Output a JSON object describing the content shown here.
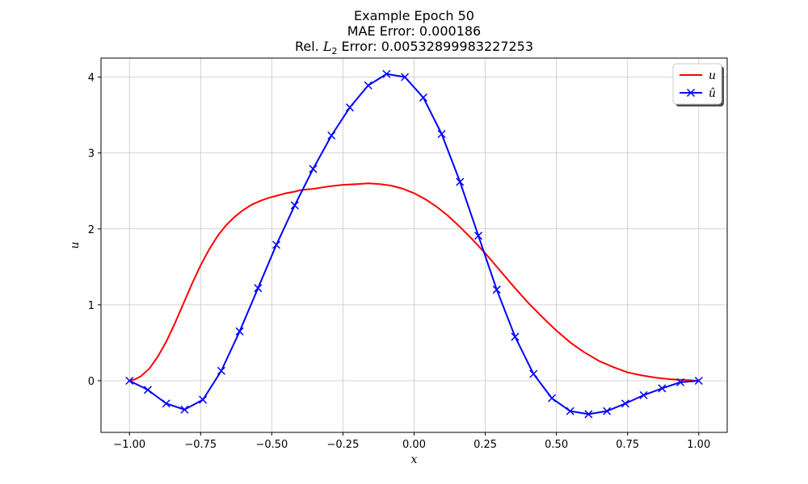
{
  "chart_data": {
    "type": "line",
    "title": {
      "line1": "Example Epoch 50",
      "line2": "MAE Error: 0.000186",
      "line3_prefix": "Rel. ",
      "line3_math": "L",
      "line3_sub": "2",
      "line3_suffix": " Error: 0.00532899983227253"
    },
    "xlabel": "x",
    "ylabel": "u",
    "xlim": [
      -1.1,
      1.1
    ],
    "ylim": [
      -0.68,
      4.25
    ],
    "xticks": [
      -1.0,
      -0.75,
      -0.5,
      -0.25,
      0.0,
      0.25,
      0.5,
      0.75,
      1.0
    ],
    "xtick_labels": [
      "−1.00",
      "−0.75",
      "−0.50",
      "−0.25",
      "0.00",
      "0.25",
      "0.50",
      "0.75",
      "1.00"
    ],
    "yticks": [
      0,
      1,
      2,
      3,
      4
    ],
    "ytick_labels": [
      "0",
      "1",
      "2",
      "3",
      "4"
    ],
    "grid": true,
    "legend_position": "top-right",
    "series": [
      {
        "name": "u",
        "legend_label": "u",
        "color": "#ff0000",
        "marker": "none",
        "x": [
          -1.0,
          -0.98,
          -0.96,
          -0.93,
          -0.9,
          -0.87,
          -0.84,
          -0.81,
          -0.78,
          -0.75,
          -0.72,
          -0.69,
          -0.66,
          -0.63,
          -0.6,
          -0.57,
          -0.54,
          -0.51,
          -0.48,
          -0.45,
          -0.42,
          -0.4,
          -0.35,
          -0.3,
          -0.25,
          -0.2,
          -0.16,
          -0.12,
          -0.08,
          -0.04,
          0.0,
          0.04,
          0.08,
          0.12,
          0.16,
          0.2,
          0.25,
          0.3,
          0.35,
          0.4,
          0.45,
          0.5,
          0.55,
          0.6,
          0.65,
          0.7,
          0.75,
          0.8,
          0.85,
          0.9,
          0.95,
          1.0
        ],
        "values": [
          0.0,
          0.02,
          0.06,
          0.16,
          0.32,
          0.52,
          0.76,
          1.02,
          1.28,
          1.52,
          1.73,
          1.91,
          2.05,
          2.16,
          2.25,
          2.32,
          2.37,
          2.41,
          2.44,
          2.47,
          2.49,
          2.51,
          2.53,
          2.56,
          2.58,
          2.59,
          2.6,
          2.59,
          2.57,
          2.53,
          2.47,
          2.39,
          2.29,
          2.17,
          2.03,
          1.88,
          1.68,
          1.46,
          1.24,
          1.03,
          0.84,
          0.66,
          0.5,
          0.37,
          0.26,
          0.18,
          0.11,
          0.07,
          0.04,
          0.02,
          0.01,
          0.0
        ]
      },
      {
        "name": "u_hat",
        "legend_label": "û",
        "color": "#0000ff",
        "marker": "x",
        "x": [
          -1.0,
          -0.9355,
          -0.871,
          -0.8065,
          -0.742,
          -0.6774,
          -0.6129,
          -0.5484,
          -0.4839,
          -0.4194,
          -0.3548,
          -0.2903,
          -0.2258,
          -0.1613,
          -0.0968,
          -0.0323,
          0.0323,
          0.0968,
          0.1613,
          0.2258,
          0.2903,
          0.3548,
          0.4194,
          0.4839,
          0.5484,
          0.6129,
          0.6774,
          0.742,
          0.8065,
          0.871,
          0.9355,
          1.0
        ],
        "values": [
          0.0,
          -0.12,
          -0.3,
          -0.38,
          -0.25,
          0.13,
          0.65,
          1.22,
          1.79,
          2.31,
          2.79,
          3.23,
          3.6,
          3.89,
          4.04,
          4.0,
          3.73,
          3.25,
          2.62,
          1.91,
          1.2,
          0.58,
          0.09,
          -0.23,
          -0.4,
          -0.44,
          -0.4,
          -0.3,
          -0.19,
          -0.1,
          -0.02,
          0.0
        ]
      }
    ]
  }
}
